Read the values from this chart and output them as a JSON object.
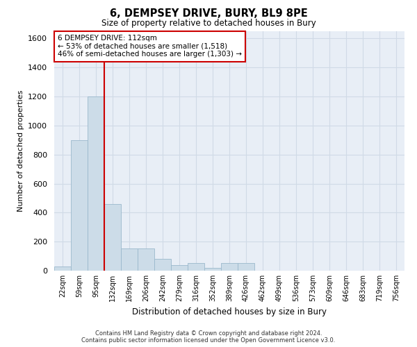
{
  "title": "6, DEMPSEY DRIVE, BURY, BL9 8PE",
  "subtitle": "Size of property relative to detached houses in Bury",
  "xlabel": "Distribution of detached houses by size in Bury",
  "ylabel": "Number of detached properties",
  "categories": [
    "22sqm",
    "59sqm",
    "95sqm",
    "132sqm",
    "169sqm",
    "206sqm",
    "242sqm",
    "279sqm",
    "316sqm",
    "352sqm",
    "389sqm",
    "426sqm",
    "462sqm",
    "499sqm",
    "536sqm",
    "573sqm",
    "609sqm",
    "646sqm",
    "683sqm",
    "719sqm",
    "756sqm"
  ],
  "values": [
    30,
    900,
    1200,
    460,
    155,
    155,
    80,
    40,
    55,
    20,
    55,
    55,
    0,
    0,
    0,
    0,
    0,
    0,
    0,
    0,
    0
  ],
  "bar_color": "#ccdce8",
  "bar_edge_color": "#9ab8cc",
  "annotation_text_line1": "6 DEMPSEY DRIVE: 112sqm",
  "annotation_text_line2": "← 53% of detached houses are smaller (1,518)",
  "annotation_text_line3": "46% of semi-detached houses are larger (1,303) →",
  "annotation_box_color": "#ffffff",
  "annotation_border_color": "#cc0000",
  "red_line_color": "#cc0000",
  "red_line_x": 2.5,
  "ylim": [
    0,
    1650
  ],
  "yticks": [
    0,
    200,
    400,
    600,
    800,
    1000,
    1200,
    1400,
    1600
  ],
  "grid_color": "#d0dae6",
  "background_color": "#e8eef6",
  "footer_line1": "Contains HM Land Registry data © Crown copyright and database right 2024.",
  "footer_line2": "Contains public sector information licensed under the Open Government Licence v3.0."
}
